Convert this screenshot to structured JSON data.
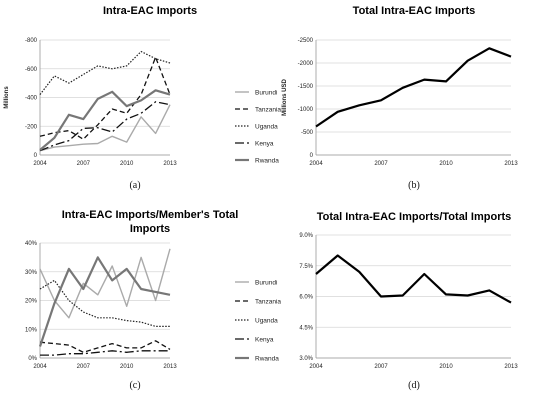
{
  "chart_data": [
    {
      "id": "a",
      "type": "line",
      "title": [
        "Intra-EAC Imports"
      ],
      "caption": "(a)",
      "ylabel": "Millions",
      "ylim": [
        0,
        -800
      ],
      "yticks": [
        0,
        -200,
        -400,
        -600,
        -800
      ],
      "ytick_labels": [
        "0",
        "-200",
        "-400",
        "-600",
        "-800"
      ],
      "x": [
        2004,
        2005,
        2006,
        2007,
        2008,
        2009,
        2010,
        2011,
        2012,
        2013
      ],
      "xlim": [
        2004,
        2013
      ],
      "xticks": [
        2004,
        2007,
        2010,
        2013
      ],
      "xtick_labels": [
        "2004",
        "2007",
        "2010",
        "2013"
      ],
      "legend": "right",
      "series": [
        {
          "name": "Burundi",
          "color": "#aaaaaa",
          "width": 1.4,
          "dash": "",
          "values": [
            -30,
            -55,
            -65,
            -75,
            -80,
            -130,
            -90,
            -265,
            -150,
            -350
          ]
        },
        {
          "name": "Tanzania",
          "color": "#111111",
          "width": 1.3,
          "dash": "5,3",
          "values": [
            -130,
            -155,
            -170,
            -110,
            -210,
            -320,
            -290,
            -420,
            -680,
            -420
          ]
        },
        {
          "name": "Uganda",
          "color": "#222222",
          "width": 1.2,
          "dash": "1.5,1.5",
          "values": [
            -420,
            -550,
            -500,
            -560,
            -620,
            -600,
            -620,
            -720,
            -670,
            -640
          ]
        },
        {
          "name": "Kenya",
          "color": "#111111",
          "width": 1.3,
          "dash": "9,3,2,3",
          "values": [
            -30,
            -70,
            -100,
            -185,
            -190,
            -160,
            -250,
            -290,
            -370,
            -350
          ]
        },
        {
          "name": "Rwanda",
          "color": "#777777",
          "width": 2.2,
          "dash": "",
          "values": [
            -35,
            -120,
            -280,
            -250,
            -390,
            -440,
            -340,
            -380,
            -450,
            -420
          ]
        }
      ]
    },
    {
      "id": "b",
      "type": "line",
      "title": [
        "Total Intra-EAC Imports"
      ],
      "caption": "(b)",
      "ylabel": "Millions USD",
      "ylim": [
        0,
        -2500
      ],
      "yticks": [
        0,
        -500,
        -1000,
        -1500,
        -2000,
        -2500
      ],
      "ytick_labels": [
        "0",
        "-500",
        "-1000",
        "-1500",
        "-2000",
        "-2500"
      ],
      "x": [
        2004,
        2005,
        2006,
        2007,
        2008,
        2009,
        2010,
        2011,
        2012,
        2013
      ],
      "xlim": [
        2004,
        2013
      ],
      "xticks": [
        2004,
        2007,
        2010,
        2013
      ],
      "xtick_labels": [
        "2004",
        "2007",
        "2010",
        "2013"
      ],
      "legend": "none",
      "series": [
        {
          "color": "#000000",
          "width": 2.2,
          "dash": "",
          "values": [
            -620,
            -940,
            -1080,
            -1190,
            -1460,
            -1640,
            -1600,
            -2050,
            -2320,
            -2140
          ]
        }
      ]
    },
    {
      "id": "c",
      "type": "line",
      "title": [
        "Intra-EAC Imports/Member's Total",
        "Imports"
      ],
      "caption": "(c)",
      "ylabel": "",
      "ylim": [
        0,
        40
      ],
      "yticks": [
        0,
        10,
        20,
        30,
        40
      ],
      "ytick_labels": [
        "0%",
        "10%",
        "20%",
        "30%",
        "40%"
      ],
      "x": [
        2004,
        2005,
        2006,
        2007,
        2008,
        2009,
        2010,
        2011,
        2012,
        2013
      ],
      "xlim": [
        2004,
        2013
      ],
      "xticks": [
        2004,
        2007,
        2010,
        2013
      ],
      "xtick_labels": [
        "2004",
        "2007",
        "2010",
        "2013"
      ],
      "legend": "right",
      "series": [
        {
          "name": "Burundi",
          "color": "#aaaaaa",
          "width": 1.4,
          "dash": "",
          "values": [
            31,
            20,
            14,
            26,
            22,
            32,
            18,
            35,
            20,
            38
          ]
        },
        {
          "name": "Tanzania",
          "color": "#111111",
          "width": 1.3,
          "dash": "5,3",
          "values": [
            5.5,
            5,
            4.5,
            2,
            3.5,
            5,
            3.5,
            3.5,
            6,
            3
          ]
        },
        {
          "name": "Uganda",
          "color": "#222222",
          "width": 1.2,
          "dash": "1.5,1.5",
          "values": [
            24,
            27,
            20,
            16,
            14,
            14,
            13,
            12.5,
            11,
            11
          ]
        },
        {
          "name": "Kenya",
          "color": "#111111",
          "width": 1.3,
          "dash": "9,3,2,3",
          "values": [
            1,
            1,
            1.5,
            1.5,
            2,
            2.5,
            2,
            2.5,
            2.5,
            2.5
          ]
        },
        {
          "name": "Rwanda",
          "color": "#777777",
          "width": 2.2,
          "dash": "",
          "values": [
            4,
            19,
            31,
            24,
            35,
            27,
            31,
            24,
            23,
            22
          ]
        }
      ]
    },
    {
      "id": "d",
      "type": "line",
      "title": [
        "Total Intra-EAC Imports/Total Imports"
      ],
      "caption": "(d)",
      "ylabel": "",
      "ylim": [
        3,
        9
      ],
      "yticks": [
        3,
        4.5,
        6,
        7.5,
        9
      ],
      "ytick_labels": [
        "3.0%",
        "4.5%",
        "6.0%",
        "7.5%",
        "9.0%"
      ],
      "x": [
        2004,
        2005,
        2006,
        2007,
        2008,
        2009,
        2010,
        2011,
        2012,
        2013
      ],
      "xlim": [
        2004,
        2013
      ],
      "xticks": [
        2004,
        2007,
        2010,
        2013
      ],
      "xtick_labels": [
        "2004",
        "2007",
        "2010",
        "2013"
      ],
      "legend": "none",
      "series": [
        {
          "color": "#000000",
          "width": 2.2,
          "dash": "",
          "values": [
            7.1,
            8.0,
            7.2,
            6.0,
            6.05,
            7.1,
            6.1,
            6.05,
            6.3,
            5.7
          ]
        }
      ]
    }
  ]
}
